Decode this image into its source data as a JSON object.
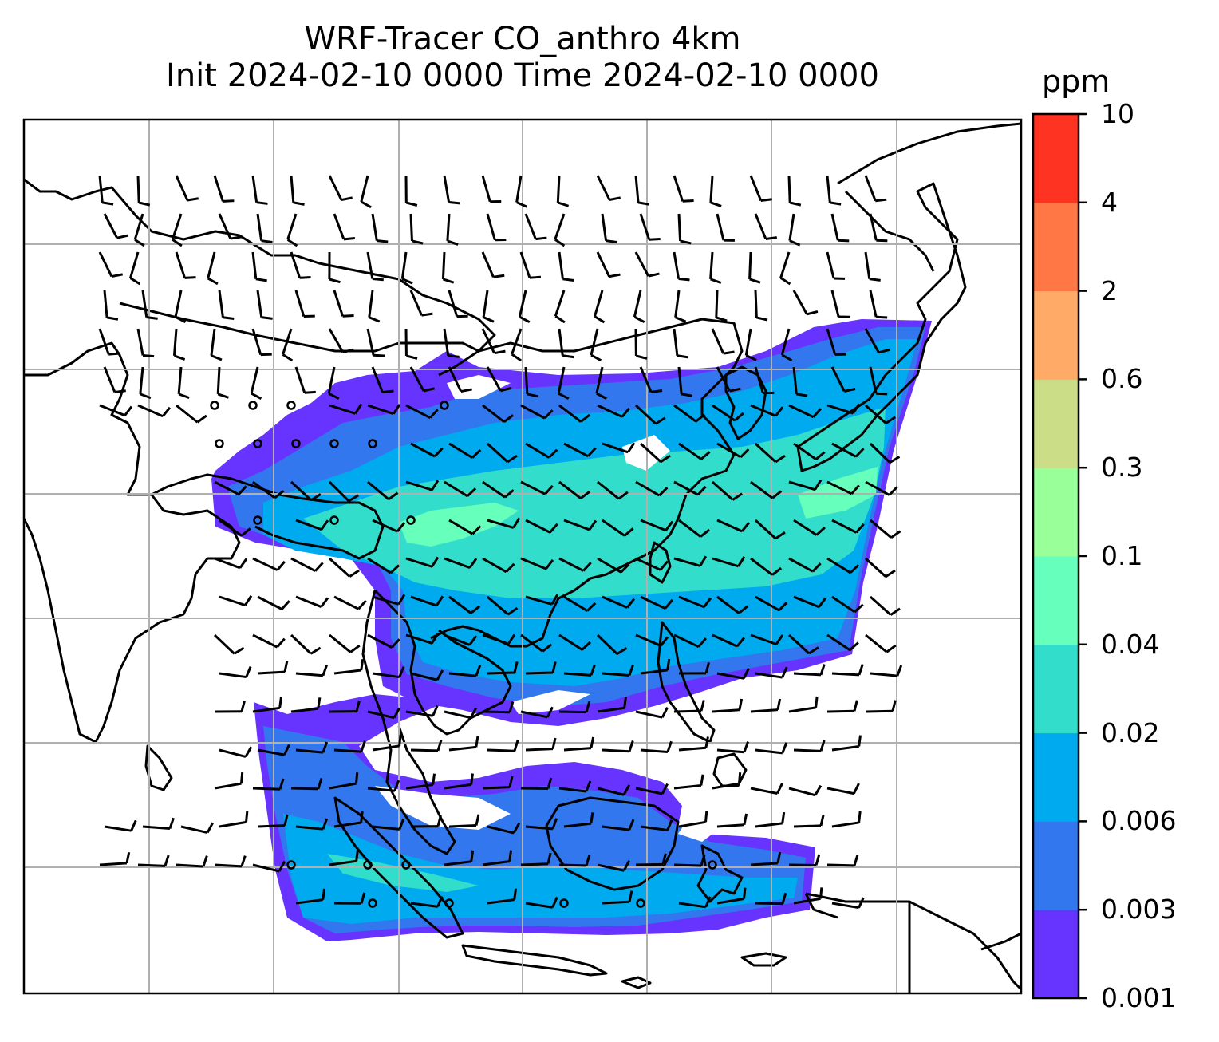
{
  "title": {
    "line1": "WRF-Tracer CO_anthro 4km",
    "line2": "Init 2024-02-10 0000 Time 2024-02-10 0000"
  },
  "colorbar": {
    "unit": "ppm",
    "levels": [
      "0.001",
      "0.003",
      "0.006",
      "0.02",
      "0.04",
      "0.1",
      "0.3",
      "0.6",
      "2",
      "4",
      "10"
    ],
    "colors": [
      "#6633ff",
      "#3377ee",
      "#00aaee",
      "#33ddcc",
      "#66ffbb",
      "#99ff99",
      "#ccdd88",
      "#ffaa66",
      "#ff7744",
      "#ff3322"
    ]
  },
  "map": {
    "features": [
      "coastlines",
      "gridlines",
      "co_anthro_filled_contours",
      "wind_barbs",
      "calm_circles"
    ],
    "gridline_color": "#b0b0b0",
    "coastline_color": "#000000"
  }
}
